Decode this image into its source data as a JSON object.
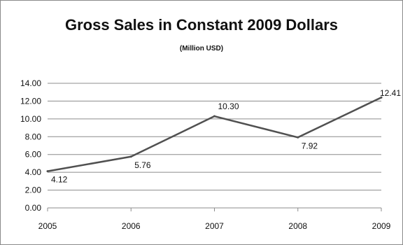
{
  "chart_data": {
    "type": "line",
    "title": "Gross Sales in Constant 2009 Dollars",
    "subtitle": "(Million USD)",
    "categories": [
      "2005",
      "2006",
      "2007",
      "2008",
      "2009"
    ],
    "y_ticks": [
      "0.00",
      "2.00",
      "4.00",
      "6.00",
      "8.00",
      "10.00",
      "12.00",
      "14.00"
    ],
    "ylim": [
      0,
      14
    ],
    "grid": true,
    "legend": "none",
    "series": [
      {
        "values": [
          4.12,
          5.76,
          10.3,
          7.92,
          12.41
        ],
        "data_labels": [
          "4.12",
          "5.76",
          "10.30",
          "7.92",
          "12.41"
        ],
        "color": "#505050"
      }
    ],
    "colors": {
      "grid": "#8c8c8c",
      "axis": "#8c8c8c",
      "line": "#505050"
    }
  }
}
